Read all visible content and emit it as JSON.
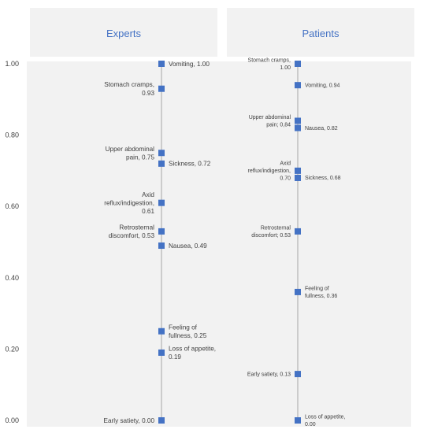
{
  "chart_data": {
    "type": "scatter",
    "ylim": [
      0,
      1
    ],
    "yticks": [
      "0.00",
      "0.20",
      "0.40",
      "0.60",
      "0.80",
      "1.00"
    ],
    "grid": false,
    "panels": [
      {
        "title": "Experts",
        "points": [
          {
            "value": 1.0,
            "label": [
              "Vomiting, 1.00"
            ],
            "side": "right"
          },
          {
            "value": 0.93,
            "label": [
              "Stomach cramps,",
              "0.93"
            ],
            "side": "left"
          },
          {
            "value": 0.75,
            "label": [
              "Upper abdominal",
              "pain, 0.75"
            ],
            "side": "left"
          },
          {
            "value": 0.72,
            "label": [
              "Sickness, 0.72"
            ],
            "side": "right"
          },
          {
            "value": 0.61,
            "label": [
              "Axid",
              "reflux/indigestion,",
              "0.61"
            ],
            "side": "left"
          },
          {
            "value": 0.53,
            "label": [
              "Retrosternal",
              "discomfort, 0.53"
            ],
            "side": "left"
          },
          {
            "value": 0.49,
            "label": [
              "Nausea, 0.49"
            ],
            "side": "right"
          },
          {
            "value": 0.25,
            "label": [
              "Feeling of",
              "fullness, 0.25"
            ],
            "side": "right"
          },
          {
            "value": 0.19,
            "label": [
              "Loss of appetite,",
              "0.19"
            ],
            "side": "right"
          },
          {
            "value": 0.0,
            "label": [
              "Early satiety, 0.00"
            ],
            "side": "left"
          }
        ]
      },
      {
        "title": "Patients",
        "points": [
          {
            "value": 1.0,
            "label": [
              "Stomach cramps,",
              "1.00"
            ],
            "side": "left"
          },
          {
            "value": 0.94,
            "label": [
              "Vomiting, 0.94"
            ],
            "side": "right"
          },
          {
            "value": 0.84,
            "label": [
              "Upper abdominal",
              "pain; 0,84"
            ],
            "side": "left"
          },
          {
            "value": 0.82,
            "label": [
              "Nausea, 0.82"
            ],
            "side": "right"
          },
          {
            "value": 0.7,
            "label": [
              "Axid",
              "reflux/indigestion,",
              "0.70"
            ],
            "side": "left"
          },
          {
            "value": 0.68,
            "label": [
              "Sickness, 0.68"
            ],
            "side": "right"
          },
          {
            "value": 0.53,
            "label": [
              "Retrosternal",
              "discomfort;  0.53"
            ],
            "side": "left"
          },
          {
            "value": 0.36,
            "label": [
              "Feeling of",
              "fullness, 0.36"
            ],
            "side": "right"
          },
          {
            "value": 0.13,
            "label": [
              "Early satiety, 0.13"
            ],
            "side": "left"
          },
          {
            "value": 0.0,
            "label": [
              "Loss of appetite,",
              "0.00"
            ],
            "side": "right"
          }
        ]
      }
    ]
  }
}
